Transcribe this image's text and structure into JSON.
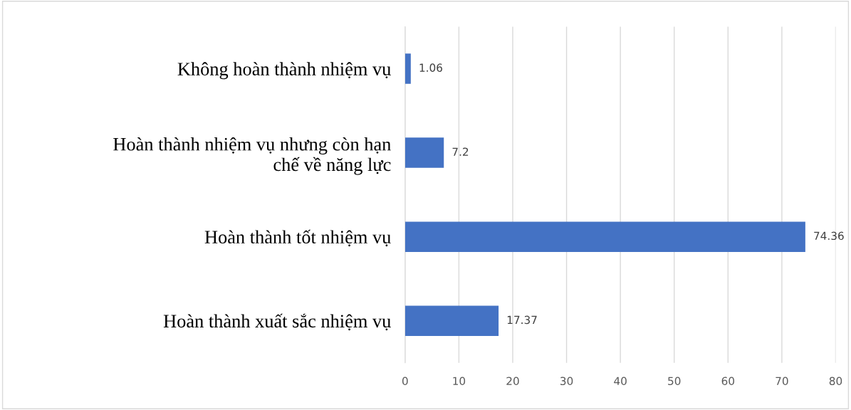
{
  "chart_data": {
    "type": "bar",
    "orientation": "horizontal",
    "categories": [
      "Không hoàn thành nhiệm vụ",
      "Hoàn thành nhiệm vụ nhưng còn hạn\nchế về năng lực",
      "Hoàn thành tốt nhiệm vụ",
      "Hoàn thành xuất sắc nhiệm vụ"
    ],
    "values": [
      1.06,
      7.2,
      74.36,
      17.37
    ],
    "color": "#4472c4",
    "xlim": [
      0,
      80
    ],
    "xticks": [
      0,
      10,
      20,
      30,
      40,
      50,
      60,
      70,
      80
    ],
    "grid": "x",
    "data_labels": true
  }
}
